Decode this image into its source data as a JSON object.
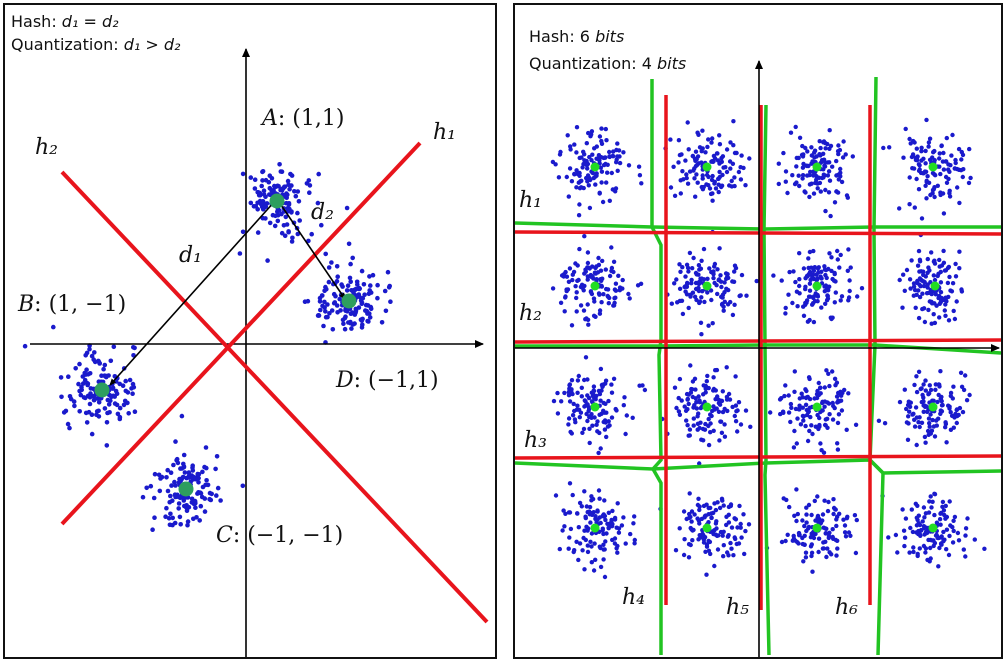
{
  "left": {
    "title_line1_prefix": "Hash: ",
    "title_line1_math": "d₁ = d₂",
    "title_line2_prefix": "Quantization: ",
    "title_line2_math": "d₁ > d₂",
    "hyperplanes": [
      "h₁",
      "h₂"
    ],
    "points": {
      "A": {
        "name": "A",
        "code": ": (1,1)"
      },
      "B": {
        "name": "B",
        "code": ": (1, −1)"
      },
      "C": {
        "name": "C",
        "code": ": (−1, −1)"
      },
      "D": {
        "name": "D",
        "code": ": (−1,1)"
      }
    },
    "distances": [
      "d₁",
      "d₂"
    ]
  },
  "right": {
    "title_line1_prefix": "Hash: 6 ",
    "title_line1_unit": "bits",
    "title_line2_prefix": "Quantization: 4 ",
    "title_line2_unit": "bits",
    "horizontal_hyperplanes": [
      "h₁",
      "h₂",
      "h₃"
    ],
    "vertical_hyperplanes": [
      "h₄",
      "h₅",
      "h₆"
    ]
  },
  "colors": {
    "points": "#1a1acc",
    "centroid_left": "#2e9e5e",
    "centroid_right": "#22dd22",
    "hash_line": "#e8141c",
    "quant_line": "#22c422",
    "axis": "#000000"
  }
}
